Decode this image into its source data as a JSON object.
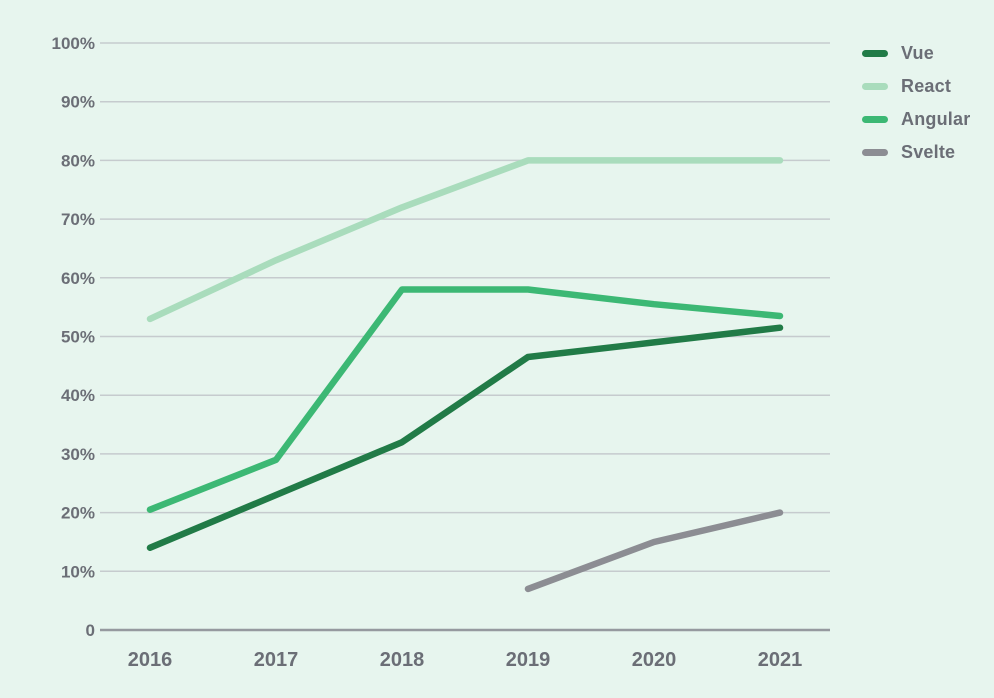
{
  "chart_data": {
    "type": "line",
    "categories": [
      "2016",
      "2017",
      "2018",
      "2019",
      "2020",
      "2021"
    ],
    "series": [
      {
        "name": "Vue",
        "color": "#217b47",
        "values": [
          14,
          23,
          32,
          46.5,
          49,
          51.5
        ]
      },
      {
        "name": "React",
        "color": "#a9dcbc",
        "values": [
          53,
          63,
          72,
          80,
          80,
          80
        ]
      },
      {
        "name": "Angular",
        "color": "#3cb874",
        "values": [
          20.5,
          29,
          58,
          58,
          55.5,
          53.5
        ]
      },
      {
        "name": "Svelte",
        "color": "#8c8d93",
        "values": [
          null,
          null,
          null,
          7,
          15,
          20
        ]
      }
    ],
    "y_ticks": [
      "0",
      "10%",
      "20%",
      "30%",
      "40%",
      "50%",
      "60%",
      "70%",
      "80%",
      "90%",
      "100%"
    ],
    "ylim": [
      0,
      100
    ],
    "grid": true,
    "legend_position": "top-right",
    "title": "",
    "xlabel": "",
    "ylabel": "",
    "colors": {
      "background": "#e7f5ee",
      "label": "#6b6e76",
      "gridline": "#c6cbce",
      "zero_axis": "#96999f"
    }
  }
}
